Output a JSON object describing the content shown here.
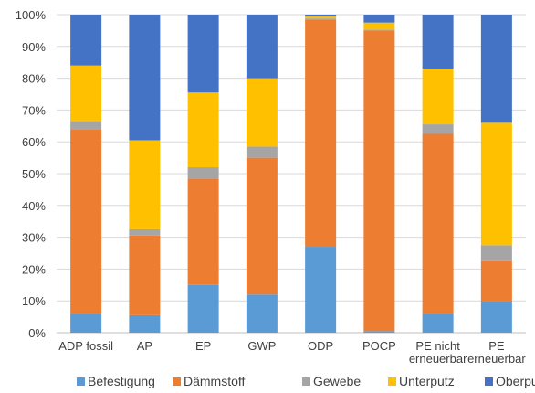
{
  "chart_data": {
    "type": "bar",
    "stacked": true,
    "percent": true,
    "title": "",
    "xlabel": "",
    "ylabel": "",
    "categories": [
      [
        "ADP fossil"
      ],
      [
        "AP"
      ],
      [
        "EP"
      ],
      [
        "GWP"
      ],
      [
        "ODP"
      ],
      [
        "POCP"
      ],
      [
        "PE nicht",
        "erneuerbar"
      ],
      [
        "PE",
        "erneuerbar"
      ]
    ],
    "series": [
      {
        "name": "Befestigung",
        "color": "#5B9BD5",
        "values": [
          6,
          5.5,
          15,
          12,
          27,
          0.5,
          6,
          10
        ]
      },
      {
        "name": "Dämmstoff",
        "color": "#ED7D31",
        "values": [
          58,
          25,
          33.5,
          43,
          71.5,
          94.5,
          56.5,
          12.5
        ]
      },
      {
        "name": "Gewebe",
        "color": "#A5A5A5",
        "values": [
          2.5,
          2,
          3.5,
          3.5,
          0.3,
          0.3,
          3,
          5
        ]
      },
      {
        "name": "Unterputz",
        "color": "#FFC000",
        "values": [
          17.5,
          28,
          23.5,
          21.5,
          0.6,
          2.2,
          17.5,
          38.5
        ]
      },
      {
        "name": "Oberputz",
        "color": "#4472C4",
        "values": [
          16,
          39.5,
          24.5,
          20,
          0.6,
          2.5,
          17,
          34
        ]
      }
    ],
    "yticks": [
      "0%",
      "10%",
      "20%",
      "30%",
      "40%",
      "50%",
      "60%",
      "70%",
      "80%",
      "90%",
      "100%"
    ],
    "ylim": [
      0,
      100
    ],
    "grid": true,
    "legend": "bottom"
  }
}
